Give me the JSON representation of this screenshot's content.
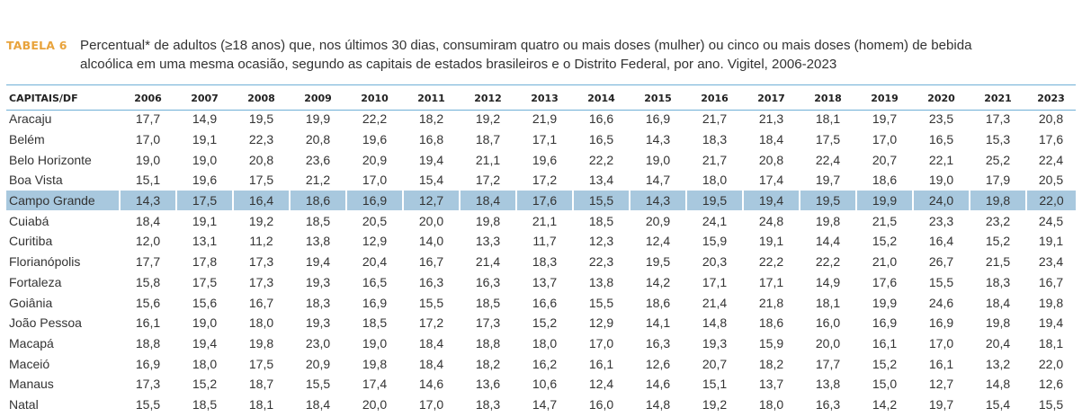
{
  "caption": {
    "label": "TABELA 6",
    "line1": "Percentual* de adultos (≥18 anos) que, nos últimos 30 dias, consumiram quatro ou mais doses (mulher) ou cinco ou mais doses (homem) de bebida",
    "line2": "alcoólica em uma mesma ocasião, segundo as capitais de estados brasileiros e o Distrito Federal, por ano. Vigitel, 2006-2023"
  },
  "table": {
    "columns": [
      "CAPITAIS/DF",
      "2006",
      "2007",
      "2008",
      "2009",
      "2010",
      "2011",
      "2012",
      "2013",
      "2014",
      "2015",
      "2016",
      "2017",
      "2018",
      "2019",
      "2020",
      "2021",
      "2023"
    ],
    "highlighted_row": "Campo Grande",
    "highlight_color": "#a8c8de",
    "rows": [
      [
        "Aracaju",
        "17,7",
        "14,9",
        "19,5",
        "19,9",
        "22,2",
        "18,2",
        "19,2",
        "21,9",
        "16,6",
        "16,9",
        "21,7",
        "21,3",
        "18,1",
        "19,7",
        "23,5",
        "17,3",
        "20,8"
      ],
      [
        "Belém",
        "17,0",
        "19,1",
        "22,3",
        "20,8",
        "19,6",
        "16,8",
        "18,7",
        "17,1",
        "16,5",
        "14,3",
        "18,3",
        "18,4",
        "17,5",
        "17,0",
        "16,5",
        "15,3",
        "17,6"
      ],
      [
        "Belo Horizonte",
        "19,0",
        "19,0",
        "20,8",
        "23,6",
        "20,9",
        "19,4",
        "21,1",
        "19,6",
        "22,2",
        "19,0",
        "21,7",
        "20,8",
        "22,4",
        "20,7",
        "22,1",
        "25,2",
        "22,4"
      ],
      [
        "Boa Vista",
        "15,1",
        "19,6",
        "17,5",
        "21,2",
        "17,0",
        "15,4",
        "17,2",
        "17,2",
        "13,4",
        "14,7",
        "18,0",
        "17,4",
        "19,7",
        "18,6",
        "19,0",
        "17,9",
        "20,5"
      ],
      [
        "Campo Grande",
        "14,3",
        "17,5",
        "16,4",
        "18,6",
        "16,9",
        "12,7",
        "18,4",
        "17,6",
        "15,5",
        "14,3",
        "19,5",
        "19,4",
        "19,5",
        "19,9",
        "24,0",
        "19,8",
        "22,0"
      ],
      [
        "Cuiabá",
        "18,4",
        "19,1",
        "19,2",
        "18,5",
        "20,5",
        "20,0",
        "19,8",
        "21,1",
        "18,5",
        "20,9",
        "24,1",
        "24,8",
        "19,8",
        "21,5",
        "23,3",
        "23,2",
        "24,5"
      ],
      [
        "Curitiba",
        "12,0",
        "13,1",
        "11,2",
        "13,8",
        "12,9",
        "14,0",
        "13,3",
        "11,7",
        "12,3",
        "12,4",
        "15,9",
        "19,1",
        "14,4",
        "15,2",
        "16,4",
        "15,2",
        "19,1"
      ],
      [
        "Florianópolis",
        "17,7",
        "17,8",
        "17,3",
        "19,4",
        "20,4",
        "16,7",
        "21,4",
        "18,3",
        "22,3",
        "19,5",
        "20,3",
        "22,2",
        "22,2",
        "21,0",
        "26,7",
        "21,5",
        "23,4"
      ],
      [
        "Fortaleza",
        "15,8",
        "17,5",
        "17,3",
        "19,3",
        "16,5",
        "16,3",
        "16,3",
        "13,7",
        "13,8",
        "14,2",
        "17,1",
        "17,1",
        "14,9",
        "17,6",
        "15,5",
        "18,3",
        "16,7"
      ],
      [
        "Goiânia",
        "15,6",
        "15,6",
        "16,7",
        "18,3",
        "16,9",
        "15,5",
        "18,5",
        "16,6",
        "15,5",
        "18,6",
        "21,4",
        "21,8",
        "18,1",
        "19,9",
        "24,6",
        "18,4",
        "19,8"
      ],
      [
        "João Pessoa",
        "16,1",
        "19,0",
        "18,0",
        "19,3",
        "18,5",
        "17,2",
        "17,3",
        "15,2",
        "12,9",
        "14,1",
        "14,8",
        "18,6",
        "16,0",
        "16,9",
        "16,9",
        "19,8",
        "19,4"
      ],
      [
        "Macapá",
        "18,8",
        "19,4",
        "19,8",
        "23,0",
        "19,0",
        "18,4",
        "18,8",
        "18,0",
        "17,0",
        "16,3",
        "19,3",
        "15,9",
        "20,0",
        "16,1",
        "17,0",
        "20,4",
        "18,1"
      ],
      [
        "Maceió",
        "16,9",
        "18,0",
        "17,5",
        "20,9",
        "19,8",
        "18,4",
        "18,2",
        "16,2",
        "16,1",
        "12,6",
        "20,7",
        "18,2",
        "17,7",
        "15,2",
        "16,1",
        "13,2",
        "22,0"
      ],
      [
        "Manaus",
        "17,3",
        "15,2",
        "18,7",
        "15,5",
        "17,4",
        "14,6",
        "13,6",
        "10,6",
        "12,4",
        "14,6",
        "15,1",
        "13,7",
        "13,8",
        "15,0",
        "12,7",
        "14,8",
        "12,6"
      ],
      [
        "Natal",
        "15,5",
        "18,5",
        "18,1",
        "18,4",
        "20,0",
        "17,0",
        "18,3",
        "14,7",
        "16,0",
        "14,8",
        "19,2",
        "18,0",
        "16,3",
        "14,2",
        "19,7",
        "15,4",
        "15,5"
      ]
    ]
  }
}
